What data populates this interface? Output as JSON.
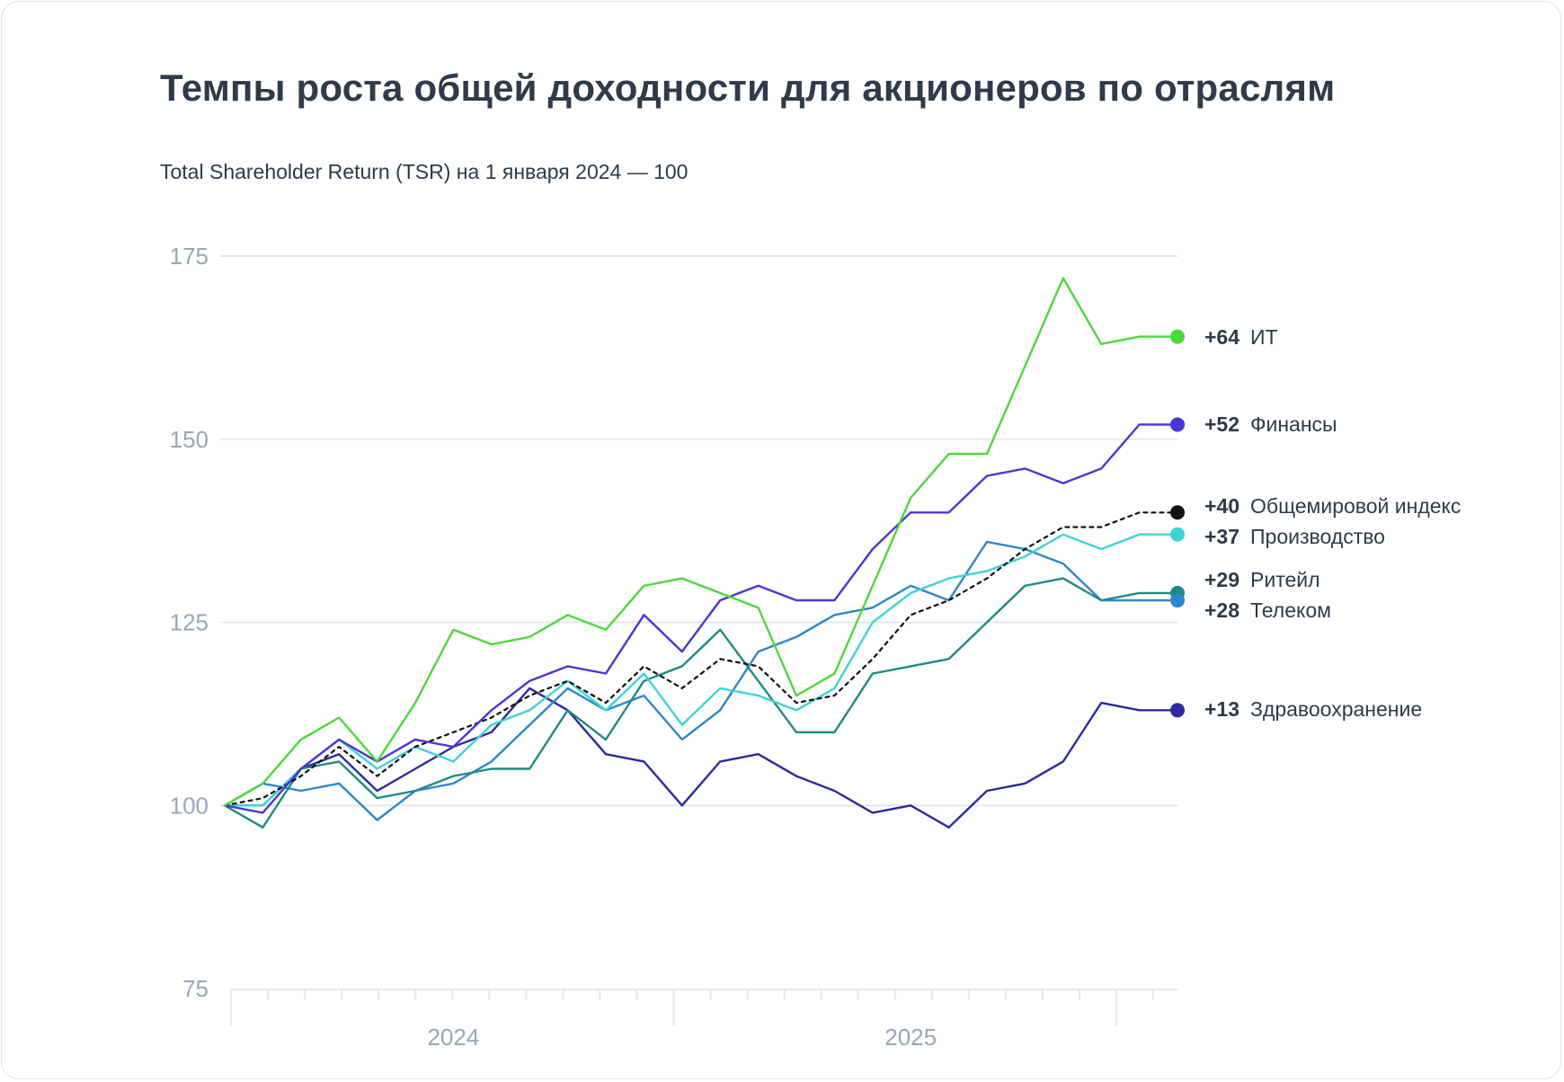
{
  "chart_data": {
    "type": "line",
    "title": "Темпы роста общей доходности для акционеров по отраслям",
    "subtitle": "Total Shareholder Return (TSR) на 1 января 2024  — 100",
    "xlabel": "",
    "ylabel": "",
    "ylim": [
      75,
      175
    ],
    "yticks": [
      "75",
      "100",
      "125",
      "150",
      "175"
    ],
    "xticks": [
      {
        "label": "2024",
        "index": 6
      },
      {
        "label": "2025",
        "index": 18
      }
    ],
    "x_points": 26,
    "grid": true,
    "legend": "end-of-line labels",
    "series": [
      {
        "name": "ИТ",
        "end_label_value": "+64",
        "color": "#4cd93a",
        "style": "solid",
        "values": [
          100,
          103,
          109,
          112,
          106,
          114,
          124,
          122,
          123,
          126,
          124,
          130,
          131,
          129,
          127,
          115,
          118,
          130,
          142,
          148,
          148,
          160,
          172,
          163,
          164,
          164
        ]
      },
      {
        "name": "Финансы",
        "end_label_value": "+52",
        "color": "#4a36d6",
        "style": "solid",
        "values": [
          100,
          99,
          105,
          109,
          106,
          109,
          108,
          113,
          117,
          119,
          118,
          126,
          121,
          128,
          130,
          128,
          128,
          135,
          140,
          140,
          145,
          146,
          144,
          146,
          152,
          152
        ]
      },
      {
        "name": "Общемировой индекс",
        "end_label_value": "+40",
        "color": "#111111",
        "style": "dotted",
        "values": [
          100,
          101,
          104,
          108,
          104,
          108,
          110,
          112,
          115,
          117,
          114,
          119,
          116,
          120,
          119,
          114,
          115,
          120,
          126,
          128,
          131,
          135,
          138,
          138,
          140,
          140
        ]
      },
      {
        "name": "Производство",
        "end_label_value": "+37",
        "color": "#3fd3d6",
        "style": "solid",
        "values": [
          100,
          100,
          105,
          109,
          105,
          108,
          106,
          111,
          113,
          117,
          113,
          118,
          111,
          116,
          115,
          113,
          116,
          125,
          129,
          131,
          132,
          134,
          137,
          135,
          137,
          137
        ]
      },
      {
        "name": "Ритейл",
        "end_label_value": "+29",
        "color": "#1f8a85",
        "style": "solid",
        "values": [
          100,
          97,
          105,
          106,
          101,
          102,
          104,
          105,
          105,
          113,
          109,
          117,
          119,
          124,
          117,
          110,
          110,
          118,
          119,
          120,
          125,
          130,
          131,
          128,
          129,
          129
        ]
      },
      {
        "name": "Телеком",
        "end_label_value": "+28",
        "color": "#2f86c9",
        "style": "solid",
        "values": [
          100,
          103,
          102,
          103,
          98,
          102,
          103,
          106,
          111,
          116,
          113,
          115,
          109,
          113,
          121,
          123,
          126,
          127,
          130,
          128,
          136,
          135,
          133,
          128,
          128,
          128
        ]
      },
      {
        "name": "Здравоохранение",
        "end_label_value": "+13",
        "color": "#2c2a9e",
        "style": "solid",
        "values": [
          100,
          100,
          105,
          107,
          102,
          105,
          108,
          110,
          116,
          113,
          107,
          106,
          100,
          106,
          107,
          104,
          102,
          99,
          100,
          97,
          102,
          103,
          106,
          114,
          113,
          113
        ]
      }
    ]
  }
}
